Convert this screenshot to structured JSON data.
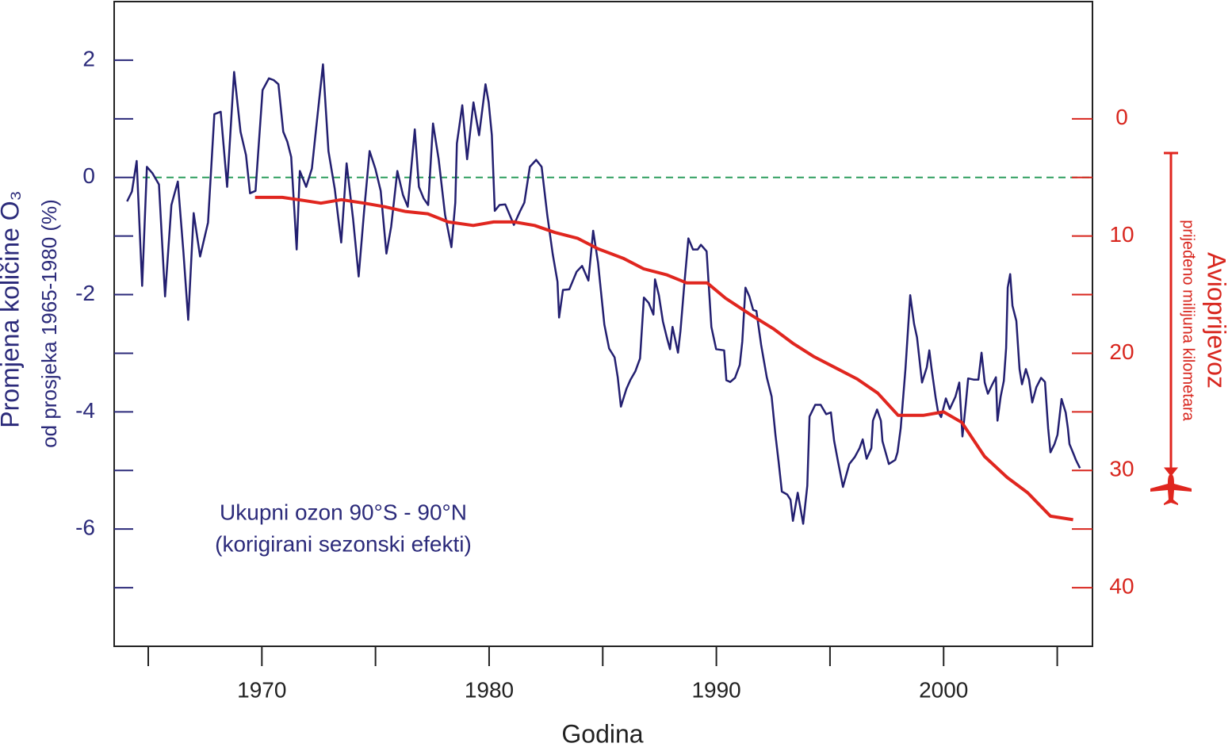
{
  "chart_data": {
    "type": "line",
    "ylabel": "Promjena količine O₃",
    "ylabel2": "od prosjeka 1965-1980 (%)",
    "y2label": "Avioprijevoz",
    "y2label2": "prijeđeno milijuna kilometara",
    "xlabel": "Godina",
    "annotation": [
      "Ukupni ozon 90°S - 90°N",
      "(korigirani sezonski efekti)"
    ],
    "xlim": [
      1963.5,
      2006.55
    ],
    "xticks": [
      1970,
      1980,
      1990,
      2000
    ],
    "xminor_ticks": [
      1965,
      1975,
      1985,
      1995,
      2005
    ],
    "ylim": [
      -8,
      3
    ],
    "yticks": [
      -6,
      -4,
      -2,
      0,
      2
    ],
    "yminor_ticks": [
      -7,
      -5,
      -3,
      -1,
      1
    ],
    "y2lim": [
      -10,
      45
    ],
    "y2_inverted": true,
    "y2ticks": [
      0,
      10,
      20,
      30,
      40
    ],
    "y2minor_ticks": [
      5,
      15,
      25,
      35
    ],
    "reference_line": {
      "value": 0,
      "color": "#2e9e5e",
      "dashed": true
    },
    "series": [
      {
        "name": "Ukupni ozon",
        "color": "#231f70",
        "axis": "y",
        "x": [
          1964.07,
          1964.28,
          1964.49,
          1964.73,
          1964.94,
          1965.19,
          1965.47,
          1965.74,
          1966.02,
          1966.3,
          1966.55,
          1966.76,
          1967.0,
          1967.28,
          1967.63,
          1967.91,
          1968.19,
          1968.47,
          1968.78,
          1969.06,
          1969.3,
          1969.48,
          1969.72,
          1970.03,
          1970.31,
          1970.52,
          1970.73,
          1970.94,
          1971.12,
          1971.29,
          1971.53,
          1971.67,
          1971.95,
          1972.2,
          1972.37,
          1972.69,
          1972.93,
          1973.21,
          1973.49,
          1973.73,
          1974.01,
          1974.26,
          1974.5,
          1974.74,
          1974.99,
          1975.23,
          1975.48,
          1975.69,
          1975.96,
          1976.21,
          1976.42,
          1976.73,
          1976.91,
          1977.12,
          1977.32,
          1977.53,
          1977.78,
          1978.06,
          1978.34,
          1978.51,
          1978.58,
          1978.82,
          1979.03,
          1979.31,
          1979.56,
          1979.84,
          1979.98,
          1980.12,
          1980.25,
          1980.46,
          1980.71,
          1981.09,
          1981.37,
          1981.55,
          1981.79,
          1982.07,
          1982.31,
          1982.56,
          1982.8,
          1983.01,
          1983.08,
          1983.25,
          1983.53,
          1983.85,
          1984.09,
          1984.37,
          1984.58,
          1984.79,
          1985.07,
          1985.28,
          1985.52,
          1985.66,
          1985.8,
          1986.04,
          1986.22,
          1986.43,
          1986.64,
          1986.81,
          1987.02,
          1987.23,
          1987.3,
          1987.47,
          1987.65,
          1987.82,
          1987.96,
          1988.07,
          1988.31,
          1988.42,
          1988.59,
          1988.77,
          1988.97,
          1989.18,
          1989.32,
          1989.57,
          1989.78,
          1989.99,
          1990.34,
          1990.44,
          1990.61,
          1990.82,
          1991.03,
          1991.14,
          1991.28,
          1991.45,
          1991.62,
          1991.76,
          1991.97,
          1992.22,
          1992.43,
          1992.6,
          1992.74,
          1992.88,
          1993.12,
          1993.26,
          1993.37,
          1993.58,
          1993.82,
          1994.0,
          1994.1,
          1994.35,
          1994.59,
          1994.83,
          1995.04,
          1995.18,
          1995.36,
          1995.57,
          1995.85,
          1996.09,
          1996.3,
          1996.44,
          1996.61,
          1996.82,
          1996.89,
          1997.07,
          1997.24,
          1997.31,
          1997.59,
          1997.87,
          1997.97,
          1998.11,
          1998.32,
          1998.53,
          1998.7,
          1998.83,
          1999.05,
          1999.26,
          1999.37,
          1999.47,
          1999.65,
          1999.75,
          1999.89,
          2000.1,
          2000.27,
          2000.52,
          2000.69,
          2000.83,
          2000.97,
          2001.08,
          2001.32,
          2001.53,
          2001.67,
          2001.81,
          2001.95,
          2002.12,
          2002.3,
          2002.37,
          2002.51,
          2002.65,
          2002.75,
          2002.82,
          2002.93,
          2003.03,
          2003.2,
          2003.34,
          2003.45,
          2003.62,
          2003.76,
          2003.9,
          2004.08,
          2004.29,
          2004.46,
          2004.6,
          2004.7,
          2004.88,
          2005.01,
          2005.19,
          2005.37,
          2005.47,
          2005.54,
          2005.72,
          2005.82,
          2006.0
        ],
        "values": [
          -0.41,
          -0.24,
          0.28,
          -1.85,
          0.18,
          0.07,
          -0.12,
          -2.03,
          -0.47,
          -0.07,
          -1.28,
          -2.43,
          -0.61,
          -1.35,
          -0.77,
          1.08,
          1.12,
          -0.16,
          1.8,
          0.78,
          0.38,
          -0.27,
          -0.23,
          1.49,
          1.69,
          1.66,
          1.59,
          0.78,
          0.61,
          0.35,
          -1.23,
          0.11,
          -0.16,
          0.15,
          0.78,
          1.93,
          0.45,
          -0.2,
          -1.11,
          0.24,
          -0.7,
          -1.69,
          -0.57,
          0.45,
          0.15,
          -0.23,
          -1.3,
          -0.84,
          0.11,
          -0.3,
          -0.5,
          0.82,
          -0.16,
          -0.36,
          -0.47,
          0.92,
          0.31,
          -0.64,
          -1.19,
          -0.43,
          0.58,
          1.23,
          0.31,
          1.28,
          0.72,
          1.59,
          1.28,
          0.72,
          -0.57,
          -0.47,
          -0.46,
          -0.81,
          -0.57,
          -0.43,
          0.18,
          0.3,
          0.18,
          -0.64,
          -1.31,
          -1.78,
          -2.39,
          -1.92,
          -1.91,
          -1.61,
          -1.51,
          -1.76,
          -0.91,
          -1.45,
          -2.51,
          -2.92,
          -3.07,
          -3.41,
          -3.91,
          -3.61,
          -3.45,
          -3.31,
          -3.09,
          -2.05,
          -2.14,
          -2.34,
          -1.74,
          -2.01,
          -2.46,
          -2.73,
          -2.93,
          -2.55,
          -2.99,
          -2.62,
          -1.82,
          -1.04,
          -1.23,
          -1.23,
          -1.15,
          -1.26,
          -2.55,
          -2.93,
          -2.95,
          -3.46,
          -3.49,
          -3.42,
          -3.2,
          -2.8,
          -1.88,
          -2.03,
          -2.26,
          -2.28,
          -2.86,
          -3.41,
          -3.74,
          -4.39,
          -4.85,
          -5.36,
          -5.41,
          -5.5,
          -5.86,
          -5.38,
          -5.91,
          -5.26,
          -4.08,
          -3.88,
          -3.88,
          -4.04,
          -4.01,
          -4.49,
          -4.86,
          -5.28,
          -4.89,
          -4.77,
          -4.62,
          -4.47,
          -4.8,
          -4.62,
          -4.15,
          -3.96,
          -4.15,
          -4.5,
          -4.89,
          -4.82,
          -4.69,
          -4.28,
          -3.27,
          -2.01,
          -2.5,
          -2.73,
          -3.5,
          -3.24,
          -2.95,
          -3.27,
          -3.76,
          -3.99,
          -4.09,
          -3.77,
          -3.95,
          -3.74,
          -3.5,
          -4.42,
          -3.88,
          -3.43,
          -3.45,
          -3.45,
          -2.99,
          -3.5,
          -3.69,
          -3.55,
          -3.41,
          -4.15,
          -3.74,
          -3.47,
          -2.91,
          -1.88,
          -1.65,
          -2.19,
          -2.45,
          -3.27,
          -3.53,
          -3.27,
          -3.45,
          -3.84,
          -3.58,
          -3.42,
          -3.49,
          -4.28,
          -4.69,
          -4.55,
          -4.39,
          -3.78,
          -4.01,
          -4.28,
          -4.55,
          -4.72,
          -4.82,
          -4.96
        ]
      },
      {
        "name": "Avioprijevoz",
        "color": "#e0261f",
        "axis": "y2",
        "x": [
          1969.7,
          1970.9,
          1971.6,
          1972.6,
          1973.5,
          1974.5,
          1975.4,
          1976.3,
          1977.3,
          1978.2,
          1979.3,
          1980.2,
          1981.1,
          1982.0,
          1982.9,
          1983.9,
          1984.8,
          1985.9,
          1986.8,
          1987.8,
          1988.7,
          1989.6,
          1990.4,
          1991.5,
          1992.5,
          1993.4,
          1994.3,
          1995.2,
          1996.2,
          1997.1,
          1998.0,
          1999.1,
          2000.0,
          2000.8,
          2001.8,
          2002.8,
          2003.7,
          2004.7,
          2005.7
        ],
        "values": [
          6.7,
          6.7,
          6.9,
          7.2,
          6.9,
          7.2,
          7.5,
          7.9,
          8.1,
          8.8,
          9.1,
          8.8,
          8.8,
          9.1,
          9.7,
          10.2,
          11.1,
          11.9,
          12.8,
          13.3,
          14.0,
          14.0,
          15.3,
          16.7,
          17.9,
          19.2,
          20.3,
          21.2,
          22.2,
          23.4,
          25.3,
          25.3,
          25.0,
          25.9,
          28.8,
          30.6,
          31.9,
          33.9,
          34.2
        ]
      }
    ]
  }
}
